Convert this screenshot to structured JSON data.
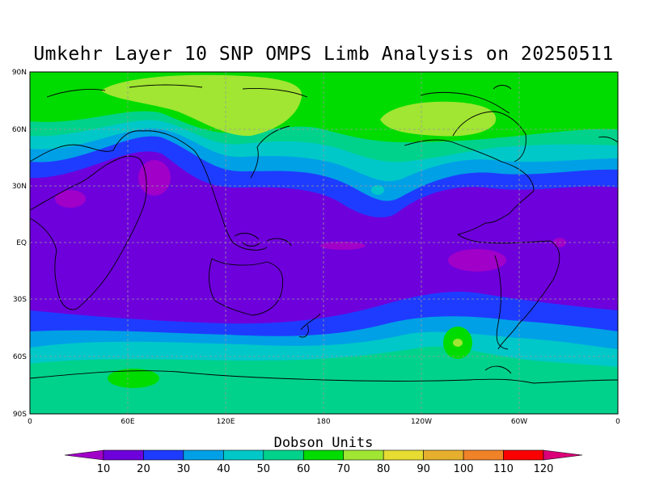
{
  "title": "Umkehr Layer 10 SNP OMPS Limb Analysis on 20250511",
  "colorbar": {
    "title": "Dobson Units",
    "levels": [
      "10",
      "20",
      "30",
      "40",
      "50",
      "60",
      "70",
      "80",
      "90",
      "100",
      "110",
      "120"
    ],
    "colors": [
      "#a000c8",
      "#6e00dc",
      "#1e3cff",
      "#00a0e6",
      "#00c8c8",
      "#00d28c",
      "#00dc00",
      "#a0e632",
      "#e6dc32",
      "#e6af2d",
      "#f08228",
      "#fa0000",
      "#dc0078"
    ]
  },
  "map": {
    "lat_labels": [
      "90N",
      "60N",
      "30N",
      "EQ",
      "30S",
      "60S",
      "90S"
    ],
    "lon_labels": [
      "0",
      "60E",
      "120E",
      "180",
      "120W",
      "60W",
      "0"
    ],
    "projection": "cylindrical-equidistant",
    "grid": "dashed",
    "field": {
      "units": "Dobson Units",
      "bands": [
        {
          "from_lat": 90,
          "to_lat": 60,
          "level": "70-80"
        },
        {
          "from_lat": 60,
          "to_lat": 35,
          "level": "40-60"
        },
        {
          "from_lat": 35,
          "to_lat": -30,
          "level": "10-20"
        },
        {
          "from_lat": -30,
          "to_lat": -55,
          "level": "20-50"
        },
        {
          "from_lat": -55,
          "to_lat": -90,
          "level": "60-70"
        }
      ]
    }
  },
  "chart_data": {
    "type": "heatmap",
    "title": "Umkehr Layer 10 SNP OMPS Limb Analysis on 20250511",
    "units": "Dobson Units",
    "x_ticks": [
      "0",
      "60E",
      "120E",
      "180",
      "120W",
      "60W",
      "0"
    ],
    "y_ticks": [
      "90N",
      "60N",
      "30N",
      "EQ",
      "30S",
      "60S",
      "90S"
    ],
    "contour_levels": [
      10,
      20,
      30,
      40,
      50,
      60,
      70,
      80,
      90,
      100,
      110,
      120
    ]
  }
}
